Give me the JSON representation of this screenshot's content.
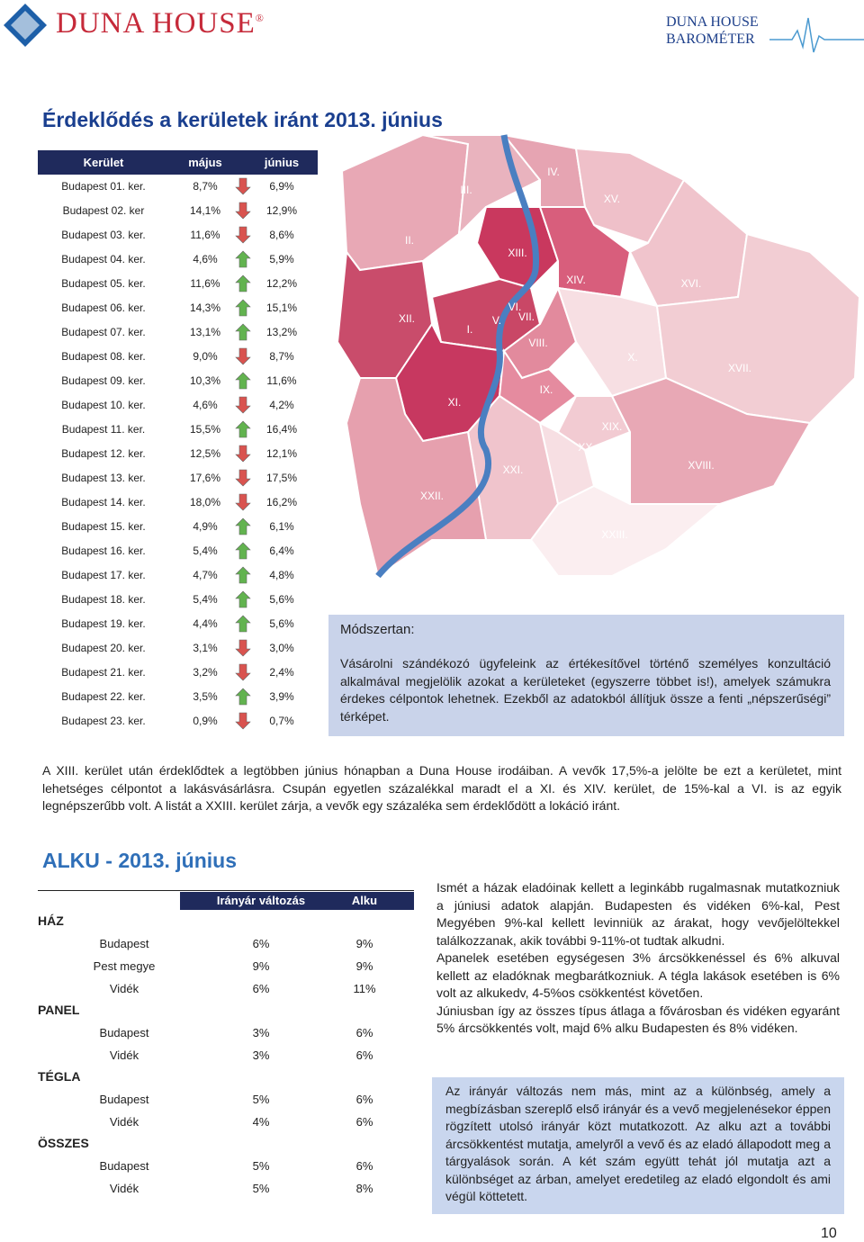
{
  "header": {
    "brand": "DUNA HOUSE",
    "trademark": "®",
    "barometer": [
      "DUNA HOUSE",
      "BAROMÉTER"
    ]
  },
  "interest": {
    "title": "Érdeklődés a kerületek iránt 2013. június",
    "table": {
      "columns": [
        "Kerület",
        "május",
        "június"
      ],
      "rows": [
        {
          "district": "Budapest 01. ker.",
          "may": "8,7%",
          "june": "6,9%",
          "trend": "down"
        },
        {
          "district": "Budapest 02. ker",
          "may": "14,1%",
          "june": "12,9%",
          "trend": "down"
        },
        {
          "district": "Budapest 03. ker.",
          "may": "11,6%",
          "june": "8,6%",
          "trend": "down"
        },
        {
          "district": "Budapest 04. ker.",
          "may": "4,6%",
          "june": "5,9%",
          "trend": "up"
        },
        {
          "district": "Budapest 05. ker.",
          "may": "11,6%",
          "june": "12,2%",
          "trend": "up"
        },
        {
          "district": "Budapest 06. ker.",
          "may": "14,3%",
          "june": "15,1%",
          "trend": "up"
        },
        {
          "district": "Budapest 07. ker.",
          "may": "13,1%",
          "june": "13,2%",
          "trend": "up"
        },
        {
          "district": "Budapest 08. ker.",
          "may": "9,0%",
          "june": "8,7%",
          "trend": "down"
        },
        {
          "district": "Budapest 09. ker.",
          "may": "10,3%",
          "june": "11,6%",
          "trend": "up"
        },
        {
          "district": "Budapest 10. ker.",
          "may": "4,6%",
          "june": "4,2%",
          "trend": "down"
        },
        {
          "district": "Budapest 11. ker.",
          "may": "15,5%",
          "june": "16,4%",
          "trend": "up"
        },
        {
          "district": "Budapest 12. ker.",
          "may": "12,5%",
          "june": "12,1%",
          "trend": "down"
        },
        {
          "district": "Budapest 13. ker.",
          "may": "17,6%",
          "june": "17,5%",
          "trend": "down"
        },
        {
          "district": "Budapest 14. ker.",
          "may": "18,0%",
          "june": "16,2%",
          "trend": "down"
        },
        {
          "district": "Budapest 15. ker.",
          "may": "4,9%",
          "june": "6,1%",
          "trend": "up"
        },
        {
          "district": "Budapest 16. ker.",
          "may": "5,4%",
          "june": "6,4%",
          "trend": "up"
        },
        {
          "district": "Budapest 17. ker.",
          "may": "4,7%",
          "june": "4,8%",
          "trend": "up"
        },
        {
          "district": "Budapest 18. ker.",
          "may": "5,4%",
          "june": "5,6%",
          "trend": "up"
        },
        {
          "district": "Budapest 19. ker.",
          "may": "4,4%",
          "june": "5,6%",
          "trend": "up"
        },
        {
          "district": "Budapest 20. ker.",
          "may": "3,1%",
          "june": "3,0%",
          "trend": "down"
        },
        {
          "district": "Budapest 21. ker.",
          "may": "3,2%",
          "june": "2,4%",
          "trend": "down"
        },
        {
          "district": "Budapest 22. ker.",
          "may": "3,5%",
          "june": "3,9%",
          "trend": "up"
        },
        {
          "district": "Budapest 23. ker.",
          "may": "0,9%",
          "june": "0,7%",
          "trend": "down"
        }
      ]
    }
  },
  "map": {
    "labels": [
      "II.",
      "III.",
      "IV.",
      "XV.",
      "XIII.",
      "XIV.",
      "XVI.",
      "XII.",
      "I.",
      "V.",
      "VI.",
      "VII.",
      "VIII.",
      "X.",
      "XVII.",
      "IX.",
      "XI.",
      "XIX.",
      "XX.",
      "XVIII.",
      "XXI.",
      "XXII.",
      "XXIII."
    ]
  },
  "methodology": {
    "title": "Módszertan:",
    "text": "Vásárolni szándékozó ügyfeleink az értékesítővel történő személyes konzultáció alkalmával megjelölik azokat a kerületeket (egyszerre többet is!), amelyek számukra érdekes célpontok lehetnek. Ezekből az adatokból állítjuk össze a fenti „népszerűségi” térképet."
  },
  "summary": "A XIII. kerület után érdeklődtek a legtöbben június hónapban a Duna House irodáiban. A vevők 17,5%-a jelölte be ezt a kerületet, mint lehetséges célpontot a lakásvásárlásra. Csupán egyetlen százalékkal maradt el a XI. és XIV. kerület, de 15%-kal a VI. is az egyik legnépszerűbb volt. A listát a XXIII. kerület zárja, a vevők egy százaléka sem érdeklődött a lokáció iránt.",
  "bargain": {
    "title": "ALKU - 2013. június",
    "table": {
      "columns": [
        "Irányár változás",
        "Alku"
      ],
      "groups": [
        {
          "name": "HÁZ",
          "rows": [
            [
              "Budapest",
              "6%",
              "9%"
            ],
            [
              "Pest megye",
              "9%",
              "9%"
            ],
            [
              "Vidék",
              "6%",
              "11%"
            ]
          ]
        },
        {
          "name": "PANEL",
          "rows": [
            [
              "Budapest",
              "3%",
              "6%"
            ],
            [
              "Vidék",
              "3%",
              "6%"
            ]
          ]
        },
        {
          "name": "TÉGLA",
          "rows": [
            [
              "Budapest",
              "5%",
              "6%"
            ],
            [
              "Vidék",
              "4%",
              "6%"
            ]
          ]
        },
        {
          "name": "ÖSSZES",
          "rows": [
            [
              "Budapest",
              "5%",
              "6%"
            ],
            [
              "Vidék",
              "5%",
              "8%"
            ]
          ]
        }
      ]
    },
    "paragraphs": [
      "Ismét a házak eladóinak kellett a leginkább rugalmasnak mutatkozniuk a júniusi adatok alapján. Budapesten és vidéken 6%-kal, Pest Megyében 9%-kal kellett levinniük az árakat, hogy vevőjelöltekkel találkozzanak, akik további 9-11%-ot tudtak alkudni.",
      "Apanelek esetében egységesen 3% árcsökkenéssel és 6% alkuval kellett az eladóknak megbarátkozniuk. A tégla lakások esetében is 6% volt az alkukedv, 4-5%os csökkentést követően.",
      "Júniusban így az összes típus átlaga a fővárosban és vidéken egyaránt 5% árcsökkentés volt, majd 6% alku Budapesten és 8% vidéken."
    ],
    "note": "Az irányár változás nem más, mint az a különbség, amely a megbízásban szereplő első irányár és a vevő megjelenésekor éppen rögzített utolsó irányár közt mutatkozott. Az alku azt a további árcsökkentést mutatja, amelyről a vevő és az eladó állapodott meg a tárgyalások során. A két szám együtt tehát jól mutatja azt a különbséget az árban, amelyet eredetileg az eladó elgondolt és ami végül köttetett."
  },
  "page_number": "10"
}
